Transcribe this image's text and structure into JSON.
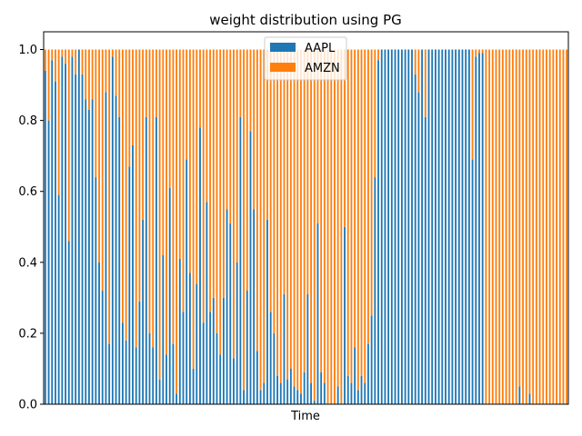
{
  "chart_data": {
    "type": "bar",
    "stacked": true,
    "title": "weight distribution using PG",
    "xlabel": "Time",
    "ylabel": "",
    "ylim": [
      0,
      1.05
    ],
    "yticks": [
      0.0,
      0.2,
      0.4,
      0.6,
      0.8,
      1.0
    ],
    "ytick_labels": [
      "0.0",
      "0.2",
      "0.4",
      "0.6",
      "0.8",
      "1.0"
    ],
    "x_ticks_visible": false,
    "legend": {
      "placement": "top-center"
    },
    "series": [
      {
        "name": "AAPL",
        "color": "#1f77b4",
        "values": [
          0.94,
          0.8,
          0.97,
          0.91,
          0.59,
          0.98,
          0.96,
          0.46,
          0.98,
          0.93,
          1.0,
          0.93,
          0.86,
          0.83,
          0.86,
          0.64,
          0.4,
          0.32,
          0.88,
          0.17,
          0.98,
          0.87,
          0.81,
          0.23,
          0.18,
          0.67,
          0.73,
          0.16,
          0.29,
          0.52,
          0.81,
          0.2,
          0.16,
          0.81,
          0.07,
          0.42,
          0.14,
          0.61,
          0.17,
          0.03,
          0.41,
          0.26,
          0.69,
          0.37,
          0.1,
          0.34,
          0.78,
          0.23,
          0.57,
          0.26,
          0.3,
          0.2,
          0.14,
          0.3,
          0.55,
          0.51,
          0.13,
          0.4,
          0.81,
          0.04,
          0.32,
          0.77,
          0.55,
          0.15,
          0.04,
          0.06,
          0.52,
          0.26,
          0.2,
          0.08,
          0.06,
          0.31,
          0.07,
          0.1,
          0.05,
          0.04,
          0.03,
          0.09,
          0.31,
          0.06,
          0.01,
          0.51,
          0.09,
          0.06,
          0.0,
          0.0,
          0.0,
          0.05,
          0.0,
          0.5,
          0.08,
          0.06,
          0.16,
          0.04,
          0.08,
          0.06,
          0.17,
          0.25,
          0.64,
          0.97,
          1.0,
          1.0,
          1.0,
          1.0,
          1.0,
          1.0,
          1.0,
          1.0,
          1.0,
          1.0,
          0.93,
          0.88,
          1.0,
          0.81,
          1.0,
          1.0,
          1.0,
          1.0,
          1.0,
          1.0,
          1.0,
          1.0,
          1.0,
          1.0,
          1.0,
          1.0,
          1.0,
          0.69,
          0.98,
          0.99,
          0.99,
          0.0,
          0.0,
          0.0,
          0.0,
          0.0,
          0.0,
          0.0,
          0.0,
          0.0,
          0.0,
          0.05,
          0.0,
          0.0,
          0.03,
          0.0,
          0.0,
          0.0,
          0.0,
          0.0,
          0.0,
          0.0,
          0.0,
          0.0,
          0.0,
          0.0
        ],
        "values_trimmed_note": ""
      },
      {
        "name": "AMZN",
        "color": "#ff7f0e",
        "values_rule": "1 - AAPL"
      }
    ]
  }
}
